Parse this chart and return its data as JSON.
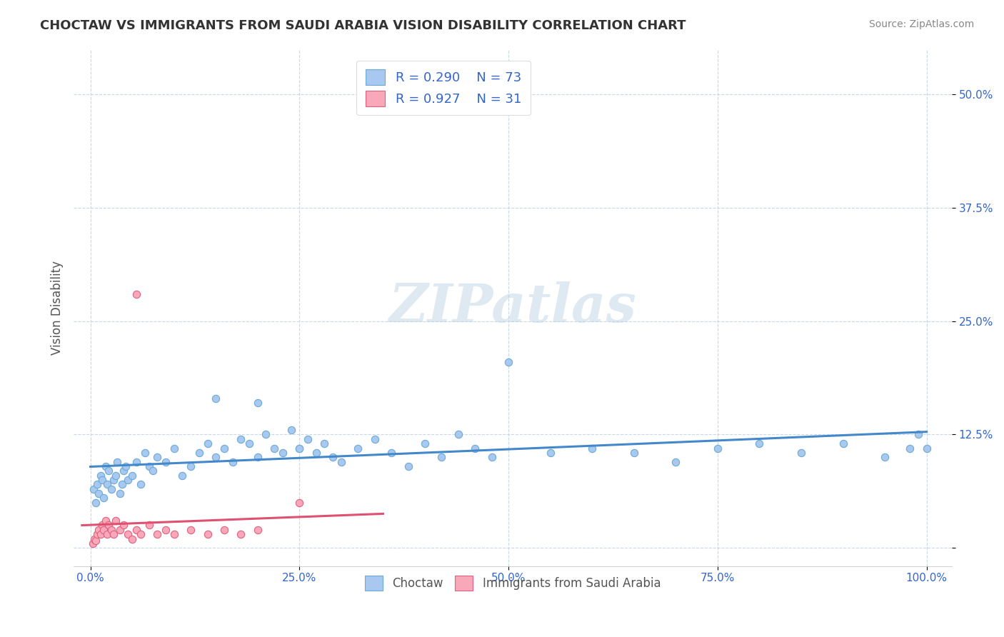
{
  "title": "CHOCTAW VS IMMIGRANTS FROM SAUDI ARABIA VISION DISABILITY CORRELATION CHART",
  "source": "Source: ZipAtlas.com",
  "ylabel": "Vision Disability",
  "xticklabels": [
    "0.0%",
    "25.0%",
    "50.0%",
    "75.0%",
    "100.0%"
  ],
  "yticklabels": [
    "",
    "12.5%",
    "25.0%",
    "37.5%",
    "50.0%"
  ],
  "watermark": "ZIPatlas",
  "series1_color": "#a8c8f0",
  "series1_edge": "#6aaad4",
  "series2_color": "#f8a8b8",
  "series2_edge": "#e06080",
  "trendline1_color": "#4488cc",
  "trendline2_color": "#e05070",
  "choctaw_x": [
    0.4,
    0.6,
    0.8,
    1.0,
    1.2,
    1.4,
    1.6,
    1.8,
    2.0,
    2.2,
    2.5,
    2.8,
    3.0,
    3.2,
    3.5,
    3.8,
    4.0,
    4.2,
    4.5,
    5.0,
    5.5,
    6.0,
    6.5,
    7.0,
    7.5,
    8.0,
    9.0,
    10.0,
    11.0,
    12.0,
    13.0,
    14.0,
    15.0,
    16.0,
    17.0,
    18.0,
    19.0,
    20.0,
    21.0,
    22.0,
    23.0,
    24.0,
    25.0,
    26.0,
    27.0,
    28.0,
    29.0,
    30.0,
    32.0,
    34.0,
    36.0,
    38.0,
    40.0,
    42.0,
    44.0,
    46.0,
    48.0,
    50.0,
    55.0,
    60.0,
    65.0,
    70.0,
    75.0,
    80.0,
    85.0,
    90.0,
    95.0,
    98.0,
    99.0,
    100.0,
    15.0,
    20.0,
    25.0
  ],
  "choctaw_y": [
    6.5,
    5.0,
    7.0,
    6.0,
    8.0,
    7.5,
    5.5,
    9.0,
    7.0,
    8.5,
    6.5,
    7.5,
    8.0,
    9.5,
    6.0,
    7.0,
    8.5,
    9.0,
    7.5,
    8.0,
    9.5,
    7.0,
    10.5,
    9.0,
    8.5,
    10.0,
    9.5,
    11.0,
    8.0,
    9.0,
    10.5,
    11.5,
    10.0,
    11.0,
    9.5,
    12.0,
    11.5,
    10.0,
    12.5,
    11.0,
    10.5,
    13.0,
    11.0,
    12.0,
    10.5,
    11.5,
    10.0,
    9.5,
    11.0,
    12.0,
    10.5,
    9.0,
    11.5,
    10.0,
    12.5,
    11.0,
    10.0,
    20.5,
    10.5,
    11.0,
    10.5,
    9.5,
    11.0,
    11.5,
    10.5,
    11.5,
    10.0,
    11.0,
    12.5,
    11.0,
    16.5,
    16.0,
    11.0
  ],
  "saudi_x": [
    0.3,
    0.5,
    0.6,
    0.8,
    1.0,
    1.2,
    1.4,
    1.6,
    1.8,
    2.0,
    2.2,
    2.5,
    2.8,
    3.0,
    3.5,
    4.0,
    4.5,
    5.0,
    5.5,
    6.0,
    7.0,
    8.0,
    9.0,
    10.0,
    12.0,
    14.0,
    16.0,
    18.0,
    20.0,
    25.0,
    5.5
  ],
  "saudi_y": [
    0.5,
    1.0,
    0.8,
    1.5,
    2.0,
    1.5,
    2.5,
    2.0,
    3.0,
    1.5,
    2.5,
    2.0,
    1.5,
    3.0,
    2.0,
    2.5,
    1.5,
    1.0,
    2.0,
    1.5,
    2.5,
    1.5,
    2.0,
    1.5,
    2.0,
    1.5,
    2.0,
    1.5,
    2.0,
    5.0,
    28.0
  ]
}
